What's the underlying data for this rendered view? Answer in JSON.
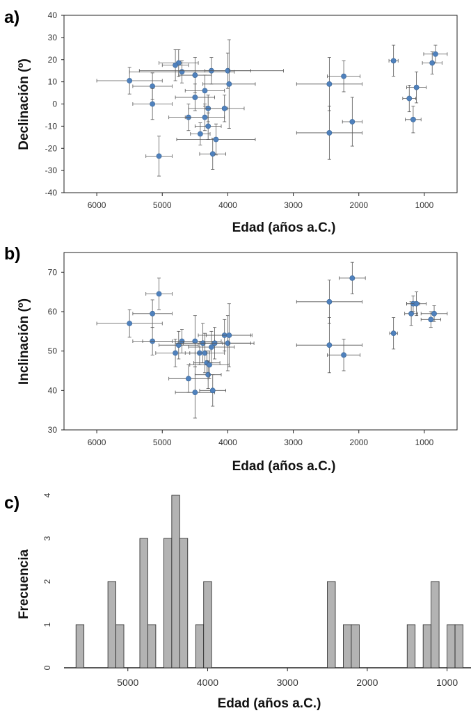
{
  "colors": {
    "point": "#4f81bd",
    "point_stroke": "#3a6595",
    "errorbar": "#555555",
    "bar_fill": "#b3b3b3",
    "bar_stroke": "#222222",
    "frame": "#222222"
  },
  "chart_data": [
    {
      "panel_label": "a)",
      "type": "scatter",
      "xlabel": "Edad (años a.C.)",
      "ylabel": "Declinación (º)",
      "xlim": [
        6500,
        500
      ],
      "xreversed": true,
      "ylim": [
        -40,
        40
      ],
      "xticks": [
        6000,
        5000,
        4000,
        3000,
        2000,
        1000
      ],
      "yticks": [
        -40,
        -30,
        -20,
        -10,
        0,
        10,
        20,
        30,
        40
      ],
      "errorbars": true,
      "points": [
        {
          "x": 5500,
          "y": 10.5,
          "xerr": 500,
          "yerr": 6
        },
        {
          "x": 5150,
          "y": 8,
          "xerr": 300,
          "yerr": 6
        },
        {
          "x": 5150,
          "y": 0,
          "xerr": 300,
          "yerr": 7
        },
        {
          "x": 5050,
          "y": -23.5,
          "xerr": 200,
          "yerr": 9
        },
        {
          "x": 4750,
          "y": 18.5,
          "xerr": 300,
          "yerr": 6
        },
        {
          "x": 4700,
          "y": 14.5,
          "xerr": 800,
          "yerr": 5
        },
        {
          "x": 4800,
          "y": 17.5,
          "xerr": 200,
          "yerr": 7
        },
        {
          "x": 4600,
          "y": -6,
          "xerr": 300,
          "yerr": 6
        },
        {
          "x": 4500,
          "y": 13,
          "xerr": 250,
          "yerr": 8
        },
        {
          "x": 4500,
          "y": 3,
          "xerr": 300,
          "yerr": 6
        },
        {
          "x": 4420,
          "y": -13.5,
          "xerr": 150,
          "yerr": 5
        },
        {
          "x": 4350,
          "y": -6,
          "xerr": 300,
          "yerr": 6
        },
        {
          "x": 4350,
          "y": 6,
          "xerr": 300,
          "yerr": 7
        },
        {
          "x": 4300,
          "y": -2,
          "xerr": 300,
          "yerr": 6
        },
        {
          "x": 4300,
          "y": -10,
          "xerr": 200,
          "yerr": 6
        },
        {
          "x": 4250,
          "y": 15,
          "xerr": 1100,
          "yerr": 6
        },
        {
          "x": 4230,
          "y": -22.5,
          "xerr": 200,
          "yerr": 7
        },
        {
          "x": 4180,
          "y": -16,
          "xerr": 600,
          "yerr": 7
        },
        {
          "x": 4050,
          "y": -2,
          "xerr": 300,
          "yerr": 6
        },
        {
          "x": 4000,
          "y": 15,
          "xerr": 350,
          "yerr": 8
        },
        {
          "x": 3980,
          "y": 9,
          "xerr": 400,
          "yerr": 20
        },
        {
          "x": 2450,
          "y": 9,
          "xerr": 500,
          "yerr": 12
        },
        {
          "x": 2450,
          "y": -13,
          "xerr": 500,
          "yerr": 12
        },
        {
          "x": 2230,
          "y": 12.5,
          "xerr": 250,
          "yerr": 7
        },
        {
          "x": 2100,
          "y": -8,
          "xerr": 150,
          "yerr": 11
        },
        {
          "x": 1470,
          "y": 19.5,
          "xerr": 70,
          "yerr": 7
        },
        {
          "x": 1230,
          "y": 2.5,
          "xerr": 100,
          "yerr": 6
        },
        {
          "x": 1170,
          "y": -7,
          "xerr": 120,
          "yerr": 6
        },
        {
          "x": 1120,
          "y": 7.5,
          "xerr": 150,
          "yerr": 7
        },
        {
          "x": 880,
          "y": 18.5,
          "xerr": 150,
          "yerr": 5
        },
        {
          "x": 830,
          "y": 22.5,
          "xerr": 180,
          "yerr": 4
        }
      ]
    },
    {
      "panel_label": "b)",
      "type": "scatter",
      "xlabel": "Edad (años a.C.)",
      "ylabel": "Inclinación (º)",
      "xlim": [
        6500,
        500
      ],
      "xreversed": true,
      "ylim": [
        30,
        75
      ],
      "xticks": [
        6000,
        5000,
        4000,
        3000,
        2000,
        1000
      ],
      "yticks": [
        30,
        40,
        50,
        60,
        70
      ],
      "errorbars": true,
      "points": [
        {
          "x": 5500,
          "y": 57,
          "xerr": 500,
          "yerr": 3.5
        },
        {
          "x": 5150,
          "y": 59.5,
          "xerr": 300,
          "yerr": 3.5
        },
        {
          "x": 5150,
          "y": 52.5,
          "xerr": 300,
          "yerr": 3.5
        },
        {
          "x": 5050,
          "y": 64.5,
          "xerr": 200,
          "yerr": 4
        },
        {
          "x": 4800,
          "y": 49.5,
          "xerr": 300,
          "yerr": 3.5
        },
        {
          "x": 4750,
          "y": 51.5,
          "xerr": 300,
          "yerr": 3.5
        },
        {
          "x": 4700,
          "y": 52.5,
          "xerr": 600,
          "yerr": 3
        },
        {
          "x": 4600,
          "y": 43,
          "xerr": 300,
          "yerr": 3.5
        },
        {
          "x": 4500,
          "y": 52.5,
          "xerr": 300,
          "yerr": 6.5
        },
        {
          "x": 4500,
          "y": 39.5,
          "xerr": 300,
          "yerr": 6.5
        },
        {
          "x": 4430,
          "y": 49.5,
          "xerr": 150,
          "yerr": 3
        },
        {
          "x": 4380,
          "y": 52,
          "xerr": 300,
          "yerr": 5
        },
        {
          "x": 4350,
          "y": 49.5,
          "xerr": 300,
          "yerr": 5
        },
        {
          "x": 4320,
          "y": 47,
          "xerr": 200,
          "yerr": 3
        },
        {
          "x": 4300,
          "y": 44,
          "xerr": 200,
          "yerr": 3.5
        },
        {
          "x": 4280,
          "y": 46.5,
          "xerr": 300,
          "yerr": 3.5
        },
        {
          "x": 4250,
          "y": 51,
          "xerr": 350,
          "yerr": 4
        },
        {
          "x": 4230,
          "y": 40,
          "xerr": 200,
          "yerr": 4
        },
        {
          "x": 4200,
          "y": 52,
          "xerr": 600,
          "yerr": 4
        },
        {
          "x": 4050,
          "y": 54,
          "xerr": 400,
          "yerr": 4
        },
        {
          "x": 4000,
          "y": 52,
          "xerr": 350,
          "yerr": 7
        },
        {
          "x": 3980,
          "y": 54,
          "xerr": 350,
          "yerr": 8
        },
        {
          "x": 2450,
          "y": 62.5,
          "xerr": 500,
          "yerr": 5.5
        },
        {
          "x": 2450,
          "y": 51.5,
          "xerr": 500,
          "yerr": 7
        },
        {
          "x": 2230,
          "y": 49,
          "xerr": 250,
          "yerr": 4
        },
        {
          "x": 2100,
          "y": 68.5,
          "xerr": 200,
          "yerr": 4
        },
        {
          "x": 1470,
          "y": 54.5,
          "xerr": 60,
          "yerr": 4
        },
        {
          "x": 1200,
          "y": 59.5,
          "xerr": 100,
          "yerr": 3
        },
        {
          "x": 1170,
          "y": 62,
          "xerr": 100,
          "yerr": 2
        },
        {
          "x": 1120,
          "y": 62,
          "xerr": 150,
          "yerr": 3
        },
        {
          "x": 900,
          "y": 58,
          "xerr": 150,
          "yerr": 2
        },
        {
          "x": 850,
          "y": 59.5,
          "xerr": 200,
          "yerr": 2
        }
      ]
    },
    {
      "panel_label": "c)",
      "type": "bar",
      "xlabel": "Edad (años a.C.)",
      "ylabel": "Frecuencia",
      "xlim": [
        5800,
        700
      ],
      "xreversed": true,
      "ylim": [
        0,
        4
      ],
      "xticks": [
        5000,
        4000,
        3000,
        2000,
        1000
      ],
      "yticks": [
        0,
        1,
        2,
        3,
        4
      ],
      "bin_width": 100,
      "bin_centers": [
        5600,
        5200,
        5100,
        4800,
        4700,
        4500,
        4400,
        4300,
        4100,
        4000,
        2450,
        2250,
        2150,
        1450,
        1250,
        1150,
        950,
        850
      ],
      "values": [
        1,
        2,
        1,
        3,
        1,
        3,
        4,
        3,
        1,
        2,
        2,
        1,
        1,
        1,
        1,
        2,
        1,
        1
      ]
    }
  ]
}
